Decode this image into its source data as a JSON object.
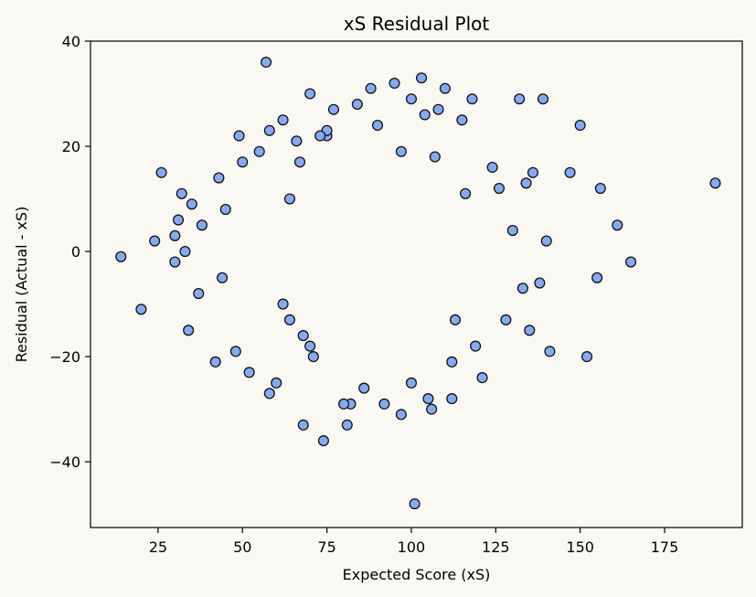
{
  "chart_data": {
    "type": "scatter",
    "title": "xS Residual Plot",
    "xlabel": "Expected Score (xS)",
    "ylabel": "Residual (Actual - xS)",
    "xlim": [
      5,
      198
    ],
    "ylim": [
      -52.5,
      40
    ],
    "xticks": [
      25,
      50,
      75,
      100,
      125,
      150,
      175
    ],
    "xtick_labels": [
      "25",
      "50",
      "75",
      "100",
      "125",
      "150",
      "175"
    ],
    "yticks": [
      -40,
      -20,
      0,
      20,
      40
    ],
    "ytick_labels": [
      "−40",
      "−20",
      "0",
      "20",
      "40"
    ],
    "grid": false,
    "marker_fill": "#87a9ef",
    "marker_edge": "#111111",
    "background": "#faf8f3",
    "series": [
      {
        "x": [
          57,
          101,
          14,
          20,
          26,
          24,
          30,
          30,
          31,
          32,
          33,
          34,
          35,
          37,
          38,
          42,
          43,
          44,
          45,
          48,
          49,
          50,
          52,
          55,
          58,
          60,
          62,
          68,
          70,
          74,
          77,
          81,
          84,
          88,
          92,
          95,
          97,
          100,
          103,
          106,
          108,
          110,
          112,
          115,
          118,
          121,
          124,
          126,
          128,
          130,
          132,
          133,
          134,
          135,
          136,
          138,
          139,
          140,
          141,
          147,
          150,
          152,
          155,
          156,
          161,
          165,
          190,
          112,
          105,
          104,
          90,
          86,
          66,
          68,
          71,
          75,
          82,
          64,
          62,
          75,
          116,
          119,
          113,
          107,
          100,
          97,
          80,
          73,
          70,
          67,
          64,
          58
        ],
        "y": [
          36,
          -48,
          -1,
          -11,
          15,
          2,
          3,
          -2,
          6,
          11,
          0,
          -15,
          9,
          -8,
          5,
          -21,
          14,
          -5,
          8,
          -19,
          22,
          17,
          -23,
          19,
          23,
          -25,
          25,
          -33,
          30,
          -36,
          27,
          -33,
          28,
          31,
          -29,
          32,
          -31,
          29,
          33,
          -30,
          27,
          31,
          -28,
          25,
          29,
          -24,
          16,
          12,
          -13,
          4,
          29,
          -7,
          13,
          -15,
          15,
          -6,
          29,
          2,
          -19,
          15,
          24,
          -20,
          -5,
          12,
          5,
          -2,
          13,
          -21,
          -28,
          26,
          24,
          -26,
          21,
          -16,
          -20,
          22,
          -29,
          10,
          -10,
          23,
          11,
          -18,
          -13,
          18,
          -25,
          19,
          -29,
          22,
          -18,
          17,
          -13,
          -27
        ]
      }
    ]
  }
}
